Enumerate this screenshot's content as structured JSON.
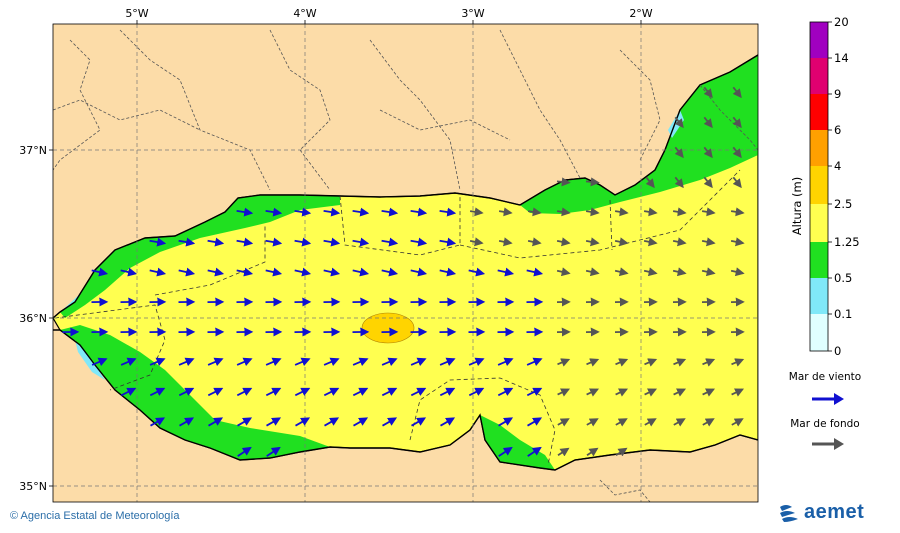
{
  "colors": {
    "land": "#fcdca8",
    "band_0": "#e0ffff",
    "band_01": "#80e8f8",
    "band_05": "#20e020",
    "band_125": "#ffff50",
    "band_25": "#ffd400",
    "band_4": "#ffa000",
    "band_6": "#ff0000",
    "band_9": "#e00070",
    "band_14": "#a000c0",
    "wind_arrow": "#1010d0",
    "swell_arrow": "#555555"
  },
  "map": {
    "lon_labels": [
      "5°W",
      "4°W",
      "3°W",
      "2°W"
    ],
    "lat_labels": [
      "37°N",
      "36°N",
      "35°N"
    ]
  },
  "legend": {
    "title": "Altura (m)",
    "ticks": [
      "20",
      "14",
      "9",
      "6",
      "4",
      "2.5",
      "1.25",
      "0.5",
      "0.1",
      "0"
    ],
    "wind_label": "Mar de viento",
    "swell_label": "Mar de fondo"
  },
  "footer": {
    "credit": "© Agencia Estatal de Meteorología",
    "logo_text": "aemet"
  }
}
